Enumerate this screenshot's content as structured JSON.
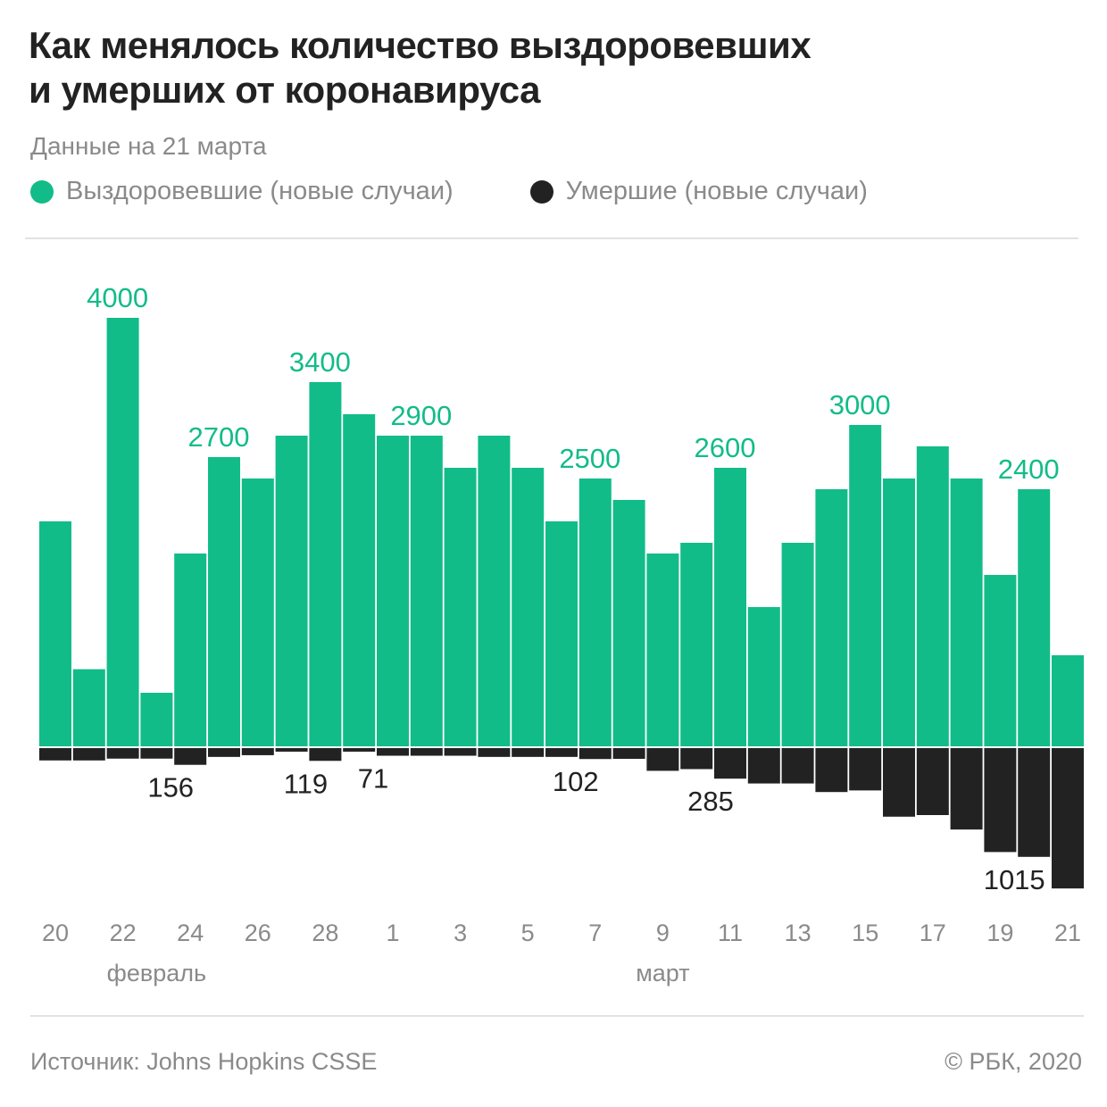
{
  "header": {
    "title_line1": "Как менялось количество выздоровевших",
    "title_line2": "и умерших от коронавируса",
    "subtitle": "Данные на 21 марта"
  },
  "footer": {
    "source": "Источник: Johns Hopkins CSSE",
    "copyright": "© РБК, 2020"
  },
  "chart_data": {
    "type": "bar",
    "categories": [
      "20",
      "21",
      "22",
      "23",
      "24",
      "25",
      "26",
      "27",
      "28",
      "29",
      "1",
      "2",
      "3",
      "4",
      "5",
      "6",
      "7",
      "8",
      "9",
      "10",
      "11",
      "12",
      "13",
      "14",
      "15",
      "16",
      "17",
      "18",
      "19",
      "20",
      "21"
    ],
    "tick_labels": [
      "20",
      "",
      "22",
      "",
      "24",
      "",
      "26",
      "",
      "28",
      "",
      "1",
      "",
      "3",
      "",
      "5",
      "",
      "7",
      "",
      "9",
      "",
      "11",
      "",
      "13",
      "",
      "15",
      "",
      "17",
      "",
      "19",
      "",
      "21"
    ],
    "month_labels": [
      {
        "label": "февраль",
        "at": "23"
      },
      {
        "label": "март",
        "at": "9"
      }
    ],
    "series": [
      {
        "name": "Выздоровевшие (новые случаи)",
        "color": "#12bc88",
        "direction": "up",
        "values": [
          2100,
          720,
          4000,
          500,
          1800,
          2700,
          2500,
          2900,
          3400,
          3100,
          2900,
          2900,
          2600,
          2900,
          2600,
          2100,
          2500,
          2300,
          1800,
          1900,
          2600,
          1300,
          1900,
          2400,
          3000,
          2500,
          2800,
          2500,
          1600,
          2400,
          850
        ],
        "labels": {
          "2": "4000",
          "5": "2700",
          "8": "3400",
          "11": "2900",
          "16": "2500",
          "20": "2600",
          "24": "3000",
          "29": "2400"
        }
      },
      {
        "name": "Умершие (новые случаи)",
        "color": "#222222",
        "direction": "down",
        "values": [
          115,
          115,
          98,
          98,
          156,
          82,
          66,
          33,
          119,
          33,
          71,
          71,
          71,
          82,
          82,
          82,
          102,
          100,
          212,
          196,
          285,
          330,
          330,
          410,
          395,
          640,
          625,
          760,
          970,
          1015,
          1310
        ],
        "labels": {
          "4": "156",
          "8": "119",
          "10": "71",
          "16": "102",
          "20": "285",
          "29": "1015"
        }
      }
    ],
    "xlabel": "",
    "ylabel": "",
    "grid": false,
    "legend": "top-left"
  }
}
